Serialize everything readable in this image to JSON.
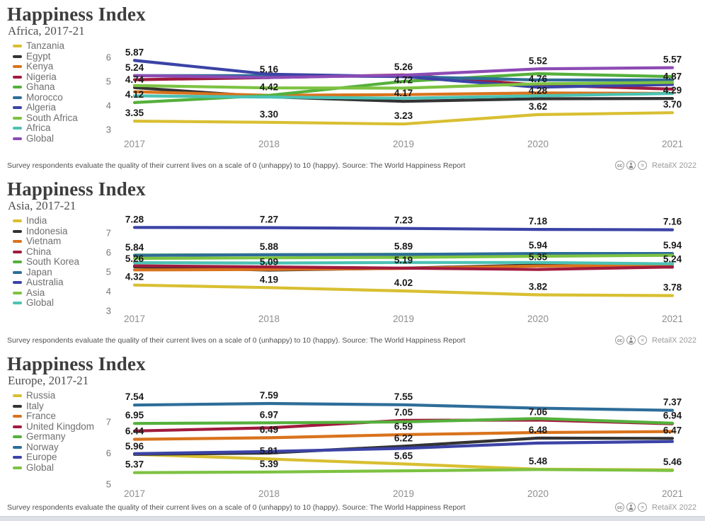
{
  "note": "Survey respondents evaluate the quality of their current lives on a scale of 0 (unhappy) to 10 (happy). Source: The World Happiness Report",
  "attribution": {
    "text": "RetailX 2022",
    "icons": [
      {
        "name": "cc-icon",
        "glyph": "cc"
      },
      {
        "name": "cc-by-icon",
        "glyph": "person"
      },
      {
        "name": "cc-nd-icon",
        "glyph": "="
      }
    ]
  },
  "palette": {
    "yellow": "#d9bf32",
    "black": "#333333",
    "orange": "#d9731d",
    "crimson": "#a01b3d",
    "green": "#55b03c",
    "steelblue": "#2e6d99",
    "indigo": "#3b43a6",
    "lightgreen": "#7dc242",
    "teal": "#4cc2b4",
    "purple": "#8d4bb5"
  },
  "chart_data": [
    {
      "type": "line",
      "title": "Happiness Index",
      "subtitle": "Africa, 2017-21",
      "x": [
        "2017",
        "2018",
        "2019",
        "2020",
        "2021"
      ],
      "yticks": [
        6,
        5,
        4,
        3
      ],
      "ylim": [
        2.8,
        6.3
      ],
      "legend_position": "left",
      "grid": false,
      "series": [
        {
          "name": "Tanzania",
          "color": "#d9bf32",
          "values": [
            3.35,
            3.3,
            3.23,
            3.62,
            3.7
          ],
          "labeled_years": [
            0,
            1,
            2,
            3,
            4
          ]
        },
        {
          "name": "Egypt",
          "color": "#333333",
          "values": [
            4.74,
            4.36,
            4.17,
            4.28,
            4.29
          ],
          "labeled_years": [
            0,
            2,
            3,
            4
          ]
        },
        {
          "name": "Kenya",
          "color": "#d9731d",
          "values": [
            4.57,
            4.42,
            4.45,
            4.52,
            4.5
          ],
          "labeled_years": []
        },
        {
          "name": "Nigeria",
          "color": "#a01b3d",
          "values": [
            5.07,
            5.16,
            5.27,
            4.85,
            4.68
          ],
          "labeled_years": []
        },
        {
          "name": "Ghana",
          "color": "#55b03c",
          "values": [
            4.12,
            4.42,
            5.0,
            5.32,
            5.2
          ],
          "labeled_years": [
            0,
            1
          ]
        },
        {
          "name": "Morocco",
          "color": "#2e6d99",
          "values": [
            5.24,
            5.24,
            5.2,
            5.06,
            5.06
          ],
          "labeled_years": []
        },
        {
          "name": "Algeria",
          "color": "#3b43a6",
          "values": [
            5.87,
            5.3,
            5.2,
            4.76,
            4.87
          ],
          "labeled_years": [
            0,
            3,
            4
          ]
        },
        {
          "name": "South Africa",
          "color": "#7dc242",
          "values": [
            4.83,
            4.73,
            4.72,
            4.9,
            4.96
          ],
          "labeled_years": [
            2
          ]
        },
        {
          "name": "Africa",
          "color": "#4cc2b4",
          "values": [
            4.4,
            4.35,
            4.3,
            4.4,
            4.5
          ],
          "labeled_years": []
        },
        {
          "name": "Global",
          "color": "#8d4bb5",
          "values": [
            5.24,
            5.16,
            5.26,
            5.52,
            5.57
          ],
          "labeled_years": [
            0,
            1,
            2,
            3,
            4
          ]
        }
      ]
    },
    {
      "type": "line",
      "title": "Happiness Index",
      "subtitle": "Asia, 2017-21",
      "x": [
        "2017",
        "2018",
        "2019",
        "2020",
        "2021"
      ],
      "yticks": [
        7,
        6,
        5,
        4,
        3
      ],
      "ylim": [
        2.8,
        7.6
      ],
      "legend_position": "left",
      "grid": false,
      "series": [
        {
          "name": "India",
          "color": "#d9bf32",
          "values": [
            4.32,
            4.19,
            4.02,
            3.82,
            3.78
          ],
          "labeled_years": [
            0,
            1,
            2,
            3,
            4
          ]
        },
        {
          "name": "Indonesia",
          "color": "#333333",
          "values": [
            5.26,
            5.09,
            5.19,
            5.35,
            5.24
          ],
          "labeled_years": [
            0,
            1,
            2,
            3,
            4
          ]
        },
        {
          "name": "Vietnam",
          "color": "#d9731d",
          "values": [
            5.1,
            5.12,
            5.18,
            5.3,
            5.34
          ],
          "labeled_years": []
        },
        {
          "name": "China",
          "color": "#a01b3d",
          "values": [
            5.31,
            5.25,
            5.19,
            5.12,
            5.25
          ],
          "labeled_years": []
        },
        {
          "name": "South Korea",
          "color": "#55b03c",
          "values": [
            5.86,
            5.88,
            5.9,
            5.89,
            5.91
          ],
          "labeled_years": []
        },
        {
          "name": "Japan",
          "color": "#2e6d99",
          "values": [
            5.84,
            5.88,
            5.89,
            5.94,
            5.94
          ],
          "labeled_years": [
            0,
            1,
            2,
            3,
            4
          ]
        },
        {
          "name": "Australia",
          "color": "#3b43a6",
          "values": [
            7.28,
            7.27,
            7.23,
            7.18,
            7.16
          ],
          "labeled_years": [
            0,
            1,
            2,
            3,
            4
          ]
        },
        {
          "name": "Asia",
          "color": "#7dc242",
          "values": [
            5.69,
            5.72,
            5.74,
            5.8,
            5.85
          ],
          "labeled_years": []
        },
        {
          "name": "Global",
          "color": "#4cc2b4",
          "values": [
            5.47,
            5.45,
            5.48,
            5.48,
            5.41
          ],
          "labeled_years": []
        }
      ]
    },
    {
      "type": "line",
      "title": "Happiness Index",
      "subtitle": "Europe, 2017-21",
      "x": [
        "2017",
        "2018",
        "2019",
        "2020",
        "2021"
      ],
      "yticks": [
        7,
        6,
        5
      ],
      "ylim": [
        4.9,
        7.8
      ],
      "legend_position": "left",
      "grid": false,
      "series": [
        {
          "name": "Russia",
          "color": "#d9bf32",
          "values": [
            5.96,
            5.81,
            5.65,
            5.48,
            5.46
          ],
          "labeled_years": [
            1,
            2,
            3,
            4
          ]
        },
        {
          "name": "Italy",
          "color": "#333333",
          "values": [
            5.96,
            6.0,
            6.22,
            6.48,
            6.47
          ],
          "labeled_years": [
            0,
            2,
            3,
            4
          ]
        },
        {
          "name": "France",
          "color": "#d9731d",
          "values": [
            6.44,
            6.49,
            6.59,
            6.66,
            6.69
          ],
          "labeled_years": [
            0,
            1,
            2
          ]
        },
        {
          "name": "United Kingdom",
          "color": "#a01b3d",
          "values": [
            6.71,
            6.81,
            7.05,
            7.06,
            6.94
          ],
          "labeled_years": [
            2,
            3,
            4
          ]
        },
        {
          "name": "Germany",
          "color": "#55b03c",
          "values": [
            6.95,
            6.97,
            7.0,
            7.11,
            6.96
          ],
          "labeled_years": [
            0,
            1
          ]
        },
        {
          "name": "Norway",
          "color": "#2e6d99",
          "values": [
            7.54,
            7.59,
            7.55,
            7.44,
            7.37
          ],
          "labeled_years": [
            0,
            1,
            2,
            4
          ]
        },
        {
          "name": "Europe",
          "color": "#3b43a6",
          "values": [
            5.98,
            6.05,
            6.15,
            6.32,
            6.37
          ],
          "labeled_years": []
        },
        {
          "name": "Global",
          "color": "#7dc242",
          "values": [
            5.37,
            5.39,
            5.43,
            5.47,
            5.44
          ],
          "labeled_years": [
            0,
            1
          ]
        }
      ]
    }
  ]
}
